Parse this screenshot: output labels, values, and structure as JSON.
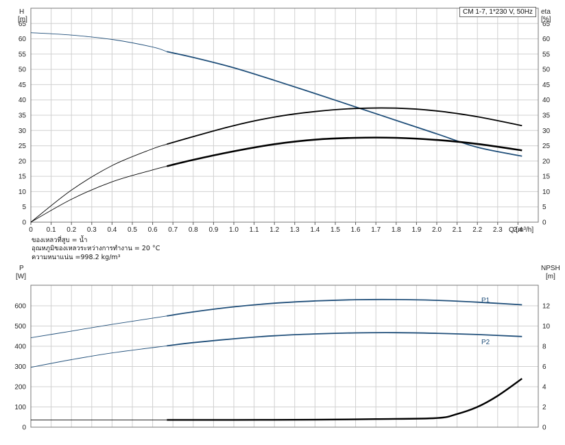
{
  "chart_data": [
    {
      "type": "line",
      "title": "CM 1-7, 1*230 V, 50Hz",
      "ylabel_left": "H",
      "ylabel_left_unit": "[m]",
      "ylabel_right": "eta",
      "ylabel_right_unit": "[%]",
      "xlabel": "Q [m³/h]",
      "xlim": [
        0,
        2.5
      ],
      "ylim": [
        0,
        70
      ],
      "y_ticks": [
        0,
        5,
        10,
        15,
        20,
        25,
        30,
        35,
        40,
        45,
        50,
        55,
        60,
        65
      ],
      "x_ticks": [
        "0",
        "0.1",
        "0.2",
        "0.3",
        "0.4",
        "0.5",
        "0.6",
        "0.7",
        "0.8",
        "0.9",
        "1.0",
        "1.1",
        "1.2",
        "1.3",
        "1.4",
        "1.5",
        "1.6",
        "1.7",
        "1.8",
        "1.9",
        "2.0",
        "2.1",
        "2.2",
        "2.3",
        "2.4"
      ],
      "grid": true,
      "series": [
        {
          "color": "#1f4e79",
          "x": [
            0,
            0.2,
            0.4,
            0.6,
            0.67,
            0.8,
            1.0,
            1.2,
            1.4,
            1.6,
            1.8,
            2.0,
            2.2,
            2.42
          ],
          "y": [
            62,
            61.2,
            59.8,
            57.3,
            55.8,
            53.9,
            50.5,
            46.4,
            42.1,
            37.7,
            33.3,
            28.9,
            24.5,
            21.6
          ],
          "op_start": 0.67
        },
        {
          "color": "#000000",
          "x": [
            0,
            0.2,
            0.4,
            0.6,
            0.67,
            0.8,
            1.0,
            1.2,
            1.4,
            1.6,
            1.8,
            2.0,
            2.2,
            2.42
          ],
          "y": [
            0,
            10.5,
            18.5,
            24.0,
            25.5,
            28.0,
            31.6,
            34.4,
            36.2,
            37.2,
            37.3,
            36.4,
            34.5,
            31.6
          ],
          "op_start": 0.67
        },
        {
          "color": "#000000",
          "x": [
            0,
            0.2,
            0.4,
            0.6,
            0.67,
            0.8,
            1.0,
            1.2,
            1.4,
            1.6,
            1.8,
            2.0,
            2.2,
            2.42
          ],
          "y": [
            0,
            7.5,
            13.2,
            17.1,
            18.3,
            20.4,
            23.2,
            25.5,
            27.0,
            27.6,
            27.6,
            26.9,
            25.6,
            23.5
          ],
          "op_start": 0.67,
          "bold": true
        }
      ],
      "info_lines": [
        "ของเหลวที่สูบ = น้ำ",
        "อุณหภูมิของเหลวระหว่างการทำงาน = 20 °C",
        "ความหนาแน่น =998.2 kg/m³"
      ]
    },
    {
      "type": "line",
      "ylabel_left": "P",
      "ylabel_left_unit": "[W]",
      "ylabel_right": "NPSH",
      "ylabel_right_unit": "[m]",
      "xlim": [
        0,
        2.5
      ],
      "ylim_left": [
        0,
        700
      ],
      "ylim_right": [
        0,
        14
      ],
      "y_ticks_left": [
        0,
        100,
        200,
        300,
        400,
        500,
        600
      ],
      "y_ticks_right": [
        0,
        2,
        4,
        6,
        8,
        10,
        12
      ],
      "grid": true,
      "series": [
        {
          "name": "P1",
          "color": "#1f4e79",
          "axis": "left",
          "x": [
            0,
            0.2,
            0.4,
            0.67,
            0.8,
            1.0,
            1.2,
            1.4,
            1.6,
            1.8,
            2.0,
            2.2,
            2.42
          ],
          "y": [
            442,
            475,
            508,
            550,
            570,
            595,
            613,
            624,
            630,
            631,
            627,
            618,
            605
          ],
          "op_start": 0.67
        },
        {
          "name": "P2",
          "color": "#1f4e79",
          "axis": "left",
          "x": [
            0,
            0.2,
            0.4,
            0.67,
            0.8,
            1.0,
            1.2,
            1.4,
            1.6,
            1.8,
            2.0,
            2.2,
            2.42
          ],
          "y": [
            296,
            334,
            367,
            402,
            418,
            437,
            452,
            461,
            466,
            467,
            464,
            458,
            448
          ],
          "op_start": 0.67
        },
        {
          "name": "NPSH",
          "color": "#000000",
          "axis": "right",
          "bold": true,
          "x": [
            0,
            0.67,
            1.0,
            1.4,
            1.7,
            2.0,
            2.1,
            2.2,
            2.3,
            2.42
          ],
          "y": [
            0.72,
            0.72,
            0.72,
            0.74,
            0.8,
            0.9,
            1.3,
            2.0,
            3.1,
            4.8
          ],
          "op_start": 0.67
        }
      ],
      "series_labels": {
        "p1": "P1",
        "p2": "P2"
      }
    }
  ]
}
